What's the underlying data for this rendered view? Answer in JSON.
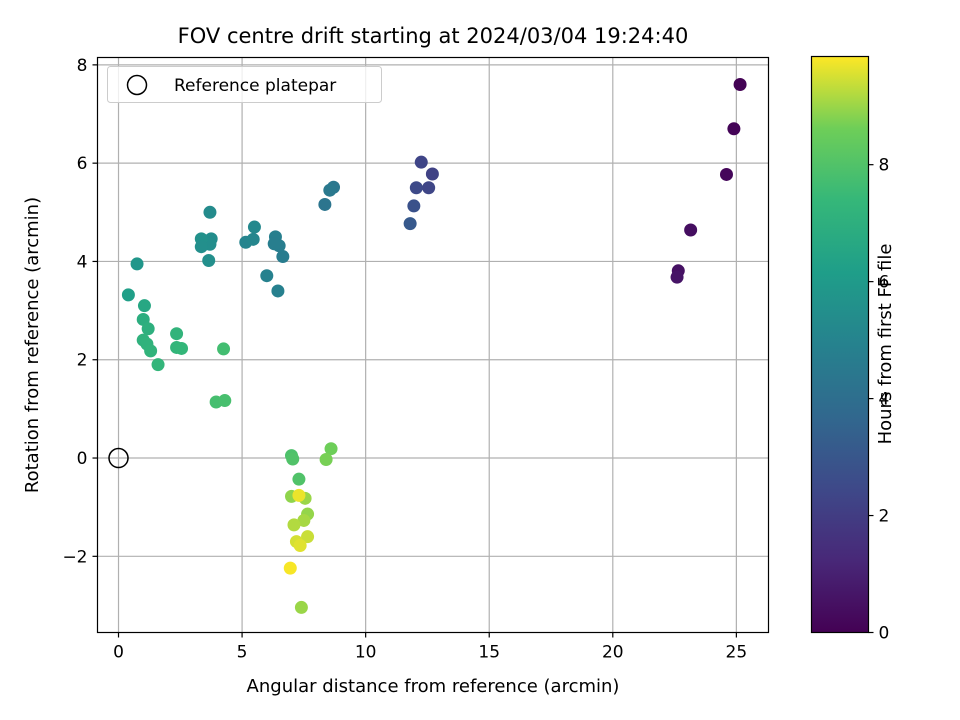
{
  "chart_data": {
    "type": "scatter",
    "title": "FOV centre drift starting at 2024/03/04 19:24:40",
    "xlabel": "Angular distance from reference (arcmin)",
    "ylabel": "Rotation from reference (arcmin)",
    "xlim": [
      -0.85,
      26.3
    ],
    "ylim": [
      -3.55,
      8.15
    ],
    "xticks": [
      0,
      5,
      10,
      15,
      20,
      25
    ],
    "yticks": [
      -2,
      0,
      2,
      4,
      6,
      8
    ],
    "grid": true,
    "legend": {
      "placement": "top-left",
      "entries": [
        "Reference platepar"
      ]
    },
    "reference": {
      "x": 0,
      "y": 0,
      "marker": "open-circle",
      "color": "#000000"
    },
    "colorbar": {
      "label": "Hours from first FF file",
      "range": [
        0,
        9.85
      ],
      "ticks": [
        0,
        2,
        4,
        6,
        8
      ],
      "colormap": "viridis"
    },
    "series": [
      {
        "points": [
          [
            25.15,
            7.6,
            0.05
          ],
          [
            24.9,
            6.7,
            0.1
          ],
          [
            24.6,
            5.77,
            0.2
          ],
          [
            23.15,
            4.64,
            0.4
          ],
          [
            22.65,
            3.81,
            0.5
          ],
          [
            22.6,
            3.68,
            0.6
          ],
          [
            12.25,
            6.02,
            2.3
          ],
          [
            12.7,
            5.78,
            2.2
          ],
          [
            12.55,
            5.5,
            2.35
          ],
          [
            12.05,
            5.5,
            2.5
          ],
          [
            11.95,
            5.13,
            2.8
          ],
          [
            11.8,
            4.77,
            3.1
          ],
          [
            8.7,
            5.51,
            4.4
          ],
          [
            8.55,
            5.45,
            4.5
          ],
          [
            8.35,
            5.16,
            4.3
          ],
          [
            6.35,
            4.5,
            4.8
          ],
          [
            6.5,
            4.32,
            4.7
          ],
          [
            6.3,
            4.36,
            4.75
          ],
          [
            6.65,
            4.1,
            4.65
          ],
          [
            6.0,
            3.71,
            4.9
          ],
          [
            6.45,
            3.4,
            4.85
          ],
          [
            5.15,
            4.39,
            5.0
          ],
          [
            5.45,
            4.45,
            5.1
          ],
          [
            5.5,
            4.7,
            5.2
          ],
          [
            3.7,
            5.0,
            5.3
          ],
          [
            3.75,
            4.46,
            5.4
          ],
          [
            3.7,
            4.35,
            5.45
          ],
          [
            3.35,
            4.46,
            5.6
          ],
          [
            3.35,
            4.3,
            5.5
          ],
          [
            3.65,
            4.02,
            5.5
          ],
          [
            0.75,
            3.95,
            5.8
          ],
          [
            0.4,
            3.32,
            6.2
          ],
          [
            1.05,
            3.1,
            6.6
          ],
          [
            1.0,
            2.82,
            6.9
          ],
          [
            1.2,
            2.63,
            7.0
          ],
          [
            1.0,
            2.4,
            7.1
          ],
          [
            1.15,
            2.32,
            7.15
          ],
          [
            1.3,
            2.18,
            7.2
          ],
          [
            1.6,
            1.9,
            7.3
          ],
          [
            2.35,
            2.53,
            7.2
          ],
          [
            2.35,
            2.25,
            7.3
          ],
          [
            2.55,
            2.23,
            7.35
          ],
          [
            4.25,
            2.22,
            7.7
          ],
          [
            3.95,
            1.14,
            7.75
          ],
          [
            4.3,
            1.17,
            7.8
          ],
          [
            7.0,
            0.05,
            7.9
          ],
          [
            7.05,
            -0.02,
            8.0
          ],
          [
            7.3,
            -0.43,
            8.0
          ],
          [
            8.6,
            0.19,
            8.6
          ],
          [
            8.4,
            -0.03,
            8.7
          ],
          [
            7.0,
            -0.78,
            8.9
          ],
          [
            7.55,
            -0.82,
            9.0
          ],
          [
            7.65,
            -1.14,
            8.95
          ],
          [
            7.5,
            -1.27,
            9.1
          ],
          [
            7.1,
            -1.36,
            9.2
          ],
          [
            7.65,
            -1.6,
            9.4
          ],
          [
            7.2,
            -1.7,
            9.5
          ],
          [
            7.35,
            -1.78,
            9.6
          ],
          [
            7.3,
            -0.76,
            9.7
          ],
          [
            6.95,
            -2.24,
            9.8
          ],
          [
            7.4,
            -3.04,
            9.0
          ]
        ]
      }
    ]
  }
}
